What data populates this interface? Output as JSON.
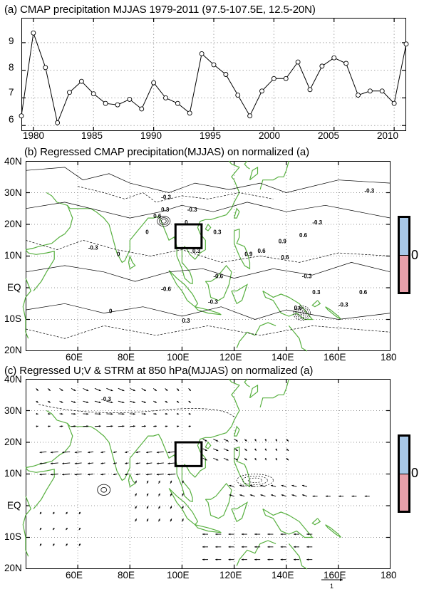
{
  "chart_data": [
    {
      "type": "line",
      "title": "(a) CMAP precipitation MJJAS 1979-2011 (97.5-107.5E, 12.5-20N)",
      "x": [
        1979,
        1980,
        1981,
        1982,
        1983,
        1984,
        1985,
        1986,
        1987,
        1988,
        1989,
        1990,
        1991,
        1992,
        1993,
        1994,
        1995,
        1996,
        1997,
        1998,
        1999,
        2000,
        2001,
        2002,
        2003,
        2004,
        2005,
        2006,
        2007,
        2008,
        2009,
        2010,
        2011
      ],
      "y": [
        6.35,
        9.35,
        8.1,
        6.1,
        7.2,
        7.6,
        7.15,
        6.8,
        6.75,
        6.95,
        6.6,
        7.55,
        7.0,
        6.8,
        6.45,
        8.6,
        8.2,
        7.85,
        7.1,
        6.35,
        7.25,
        7.7,
        7.7,
        8.3,
        7.3,
        8.15,
        8.45,
        8.25,
        7.1,
        7.25,
        7.25,
        6.8,
        8.95
      ],
      "xticks": [
        "1980",
        "1985",
        "1990",
        "1995",
        "2000",
        "2005",
        "2010"
      ],
      "yticks": [
        "6",
        "7",
        "8",
        "9"
      ],
      "xlim": [
        1979,
        2011
      ],
      "ylim": [
        5.8,
        9.9
      ],
      "grid": true
    },
    {
      "type": "heatmap",
      "title": "(b) Regressed CMAP precipitation(MJJAS) on normalized (a)",
      "yticks": [
        "40N",
        "30N",
        "20N",
        "10N",
        "EQ",
        "10S",
        "20N"
      ],
      "xticks": [
        "60E",
        "80E",
        "100E",
        "120E",
        "140E",
        "160E",
        "180"
      ],
      "xlim": [
        40,
        180
      ],
      "ylim": [
        -20,
        40
      ],
      "contour_labels": [
        "-0.3",
        "0.6",
        "0.3",
        "0",
        "0.3",
        "-0.3",
        "0",
        "0.3",
        "-0.3",
        "0.9",
        "0.6",
        "0.6",
        "0.9",
        "-0.3",
        "-0.6",
        "0.3",
        "-0.3",
        "0.3",
        "-0.3",
        "0.6",
        "0.6",
        "-0.3",
        "0",
        "0",
        "-0.6",
        "-0.3",
        "0.6"
      ],
      "box": {
        "lon": [
          97.5,
          107.5
        ],
        "lat": [
          12.5,
          20
        ]
      },
      "colorbar_label": "0",
      "colors": {
        "positive": "#a8c8e8",
        "negative": "#e8a0aa",
        "coast": "#58b040"
      }
    },
    {
      "type": "heatmap",
      "title": "(c) Regressed U;V & STRM at 850 hPa(MJJAS) on normalized (a)",
      "yticks": [
        "40N",
        "30N",
        "20N",
        "10N",
        "EQ",
        "10S",
        "20N"
      ],
      "xticks": [
        "60E",
        "80E",
        "100E",
        "120E",
        "140E",
        "160E",
        "180"
      ],
      "xlim": [
        40,
        180
      ],
      "ylim": [
        -20,
        40
      ],
      "contour_labels": [
        "-0.3"
      ],
      "box": {
        "lon": [
          97.5,
          107.5
        ],
        "lat": [
          12.5,
          20
        ]
      },
      "colorbar_label": "0",
      "reference_vector_label": "1",
      "colors": {
        "positive": "#a8c8e8",
        "negative": "#e8a0aa",
        "coast": "#58b040",
        "masked": "#585858"
      }
    }
  ]
}
